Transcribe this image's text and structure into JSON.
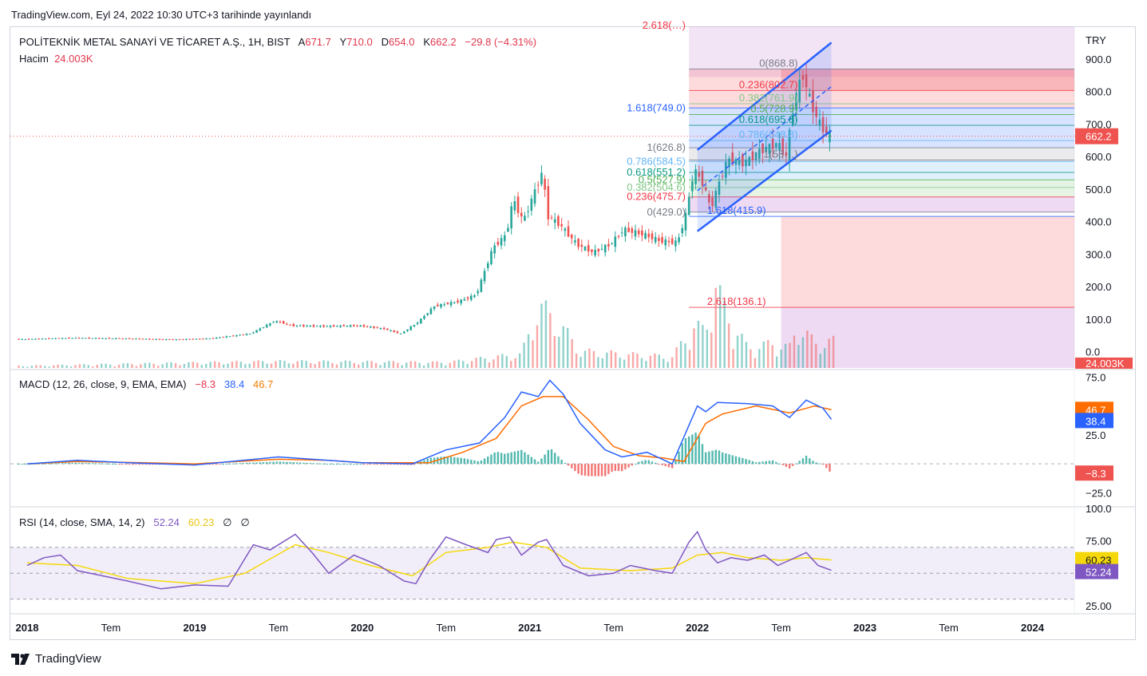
{
  "header": {
    "published": "TradingView.com, Eyl 24, 2022 10:30 UTC+3 tarihinde yayınlandı"
  },
  "legend": {
    "symbol": "POLİTEKNİK METAL SANAYİ VE TİCARET A.Ş., 1H, BIST",
    "open_label": "A",
    "open": "671.7",
    "high_label": "Y",
    "high": "710.0",
    "low_label": "D",
    "low": "654.0",
    "close_label": "K",
    "close": "662.2",
    "change": "−29.8 (−4.31%)",
    "volume_label": "Hacim",
    "volume": "24.003K"
  },
  "macd_legend": {
    "label": "MACD (12, 26, close, 9, EMA, EMA)",
    "hist": "−8.3",
    "macd": "38.4",
    "signal": "46.7"
  },
  "rsi_legend": {
    "label": "RSI (14, close, SMA, 14, 2)",
    "rsi": "52.24",
    "ma": "60.23",
    "extra1": "∅",
    "extra2": "∅"
  },
  "colors": {
    "up": "#26a69a",
    "down": "#ef5350",
    "macd": "#2962ff",
    "signal": "#ff6d00",
    "rsi": "#7e57c2",
    "rsi_ma": "#f5d80a",
    "channel": "#2962ff"
  },
  "brand": {
    "name": "TradingView"
  },
  "chart_data": [
    {
      "type": "candlestick",
      "currency": "TRY",
      "x_ticks": [
        "2018",
        "Tem",
        "2019",
        "Tem",
        "2020",
        "Tem",
        "2021",
        "Tem",
        "2022",
        "Tem",
        "2023",
        "Tem",
        "2024"
      ],
      "y_ticks": [
        "900.0",
        "800.0",
        "700.0",
        "600.0",
        "500.0",
        "400.0",
        "300.0",
        "200.0",
        "100.0",
        "0.0"
      ],
      "ylim": [
        -50,
        1000
      ],
      "last_price": "662.2",
      "volume_last": "24.003K",
      "price_path": [
        [
          2018.0,
          38
        ],
        [
          2018.3,
          42
        ],
        [
          2018.6,
          40
        ],
        [
          2018.9,
          37
        ],
        [
          2019.1,
          40
        ],
        [
          2019.35,
          55
        ],
        [
          2019.5,
          95
        ],
        [
          2019.6,
          80
        ],
        [
          2019.8,
          78
        ],
        [
          2020.0,
          80
        ],
        [
          2020.15,
          70
        ],
        [
          2020.25,
          55
        ],
        [
          2020.35,
          90
        ],
        [
          2020.45,
          140
        ],
        [
          2020.6,
          155
        ],
        [
          2020.7,
          175
        ],
        [
          2020.8,
          320
        ],
        [
          2020.88,
          360
        ],
        [
          2020.92,
          470
        ],
        [
          2020.98,
          400
        ],
        [
          2021.04,
          480
        ],
        [
          2021.1,
          560
        ],
        [
          2021.12,
          420
        ],
        [
          2021.2,
          390
        ],
        [
          2021.3,
          330
        ],
        [
          2021.4,
          305
        ],
        [
          2021.5,
          330
        ],
        [
          2021.58,
          375
        ],
        [
          2021.7,
          360
        ],
        [
          2021.8,
          340
        ],
        [
          2021.9,
          335
        ],
        [
          2021.95,
          420
        ],
        [
          2022.0,
          560
        ],
        [
          2022.05,
          520
        ],
        [
          2022.1,
          440
        ],
        [
          2022.15,
          520
        ],
        [
          2022.2,
          590
        ],
        [
          2022.3,
          580
        ],
        [
          2022.4,
          620
        ],
        [
          2022.5,
          640
        ],
        [
          2022.55,
          600
        ],
        [
          2022.6,
          780
        ],
        [
          2022.65,
          850
        ],
        [
          2022.7,
          760
        ],
        [
          2022.75,
          700
        ],
        [
          2022.8,
          662.2
        ]
      ],
      "volume_path": [
        [
          2018.0,
          2
        ],
        [
          2019.5,
          6
        ],
        [
          2020.5,
          5
        ],
        [
          2020.8,
          10
        ],
        [
          2020.95,
          12
        ],
        [
          2021.05,
          55
        ],
        [
          2021.15,
          45
        ],
        [
          2021.3,
          15
        ],
        [
          2021.6,
          12
        ],
        [
          2021.85,
          10
        ],
        [
          2021.98,
          38
        ],
        [
          2022.05,
          32
        ],
        [
          2022.1,
          85
        ],
        [
          2022.15,
          55
        ],
        [
          2022.3,
          18
        ],
        [
          2022.45,
          22
        ],
        [
          2022.55,
          18
        ],
        [
          2022.6,
          40
        ],
        [
          2022.7,
          22
        ],
        [
          2022.8,
          24
        ]
      ],
      "fib_retracement_left": [
        {
          "label": "1.618(749.0)",
          "value": 749.0,
          "color": "#2962ff"
        },
        {
          "label": "1(626.8)",
          "value": 626.8,
          "color": "#787b86"
        },
        {
          "label": "0.786(584.5)",
          "value": 584.5,
          "color": "#64b5f6"
        },
        {
          "label": "0.618(551.2)",
          "value": 551.2,
          "color": "#089981"
        },
        {
          "label": "0.5(527.9)",
          "value": 527.9,
          "color": "#4caf50"
        },
        {
          "label": "0.382(504.6)",
          "value": 504.6,
          "color": "#81c784"
        },
        {
          "label": "0.236(475.7)",
          "value": 475.7,
          "color": "#f23645"
        },
        {
          "label": "0(429.0)",
          "value": 429.0,
          "color": "#787b86"
        }
      ],
      "fib_retracement_right": [
        {
          "label": "0(868.8)",
          "value": 868.8,
          "color": "#787b86"
        },
        {
          "label": "0.236(802.7)",
          "value": 802.7,
          "color": "#f23645"
        },
        {
          "label": "0.382(761.9)",
          "value": 761.9,
          "color": "#81c784"
        },
        {
          "label": "0.5(728.9)",
          "value": 728.9,
          "color": "#4caf50"
        },
        {
          "label": "0.618(695.8)",
          "value": 695.8,
          "color": "#089981"
        },
        {
          "label": "0.786(648.8)",
          "value": 648.8,
          "color": "#64b5f6"
        },
        {
          "label": "1(58…)",
          "value": 589.0,
          "color": "#787b86"
        },
        {
          "label": "1.618(415.9)",
          "value": 415.9,
          "color": "#2962ff"
        },
        {
          "label": "2.618(136.1)",
          "value": 136.1,
          "color": "#f23645"
        }
      ],
      "top_cut_label": "2.618(…)"
    },
    {
      "type": "line",
      "name": "MACD (12, 26, close, 9, EMA, EMA)",
      "y_ticks": [
        "75.0",
        "25.0",
        "−25.0"
      ],
      "ylim": [
        -35,
        80
      ],
      "values_last": {
        "hist": "−8.3",
        "macd": "38.4",
        "signal": "46.7"
      },
      "macd_path": [
        [
          2018.0,
          0
        ],
        [
          2018.3,
          3
        ],
        [
          2018.6,
          1
        ],
        [
          2019.0,
          -1
        ],
        [
          2019.5,
          6
        ],
        [
          2019.7,
          4
        ],
        [
          2020.0,
          1
        ],
        [
          2020.3,
          0
        ],
        [
          2020.5,
          12
        ],
        [
          2020.7,
          18
        ],
        [
          2020.85,
          40
        ],
        [
          2020.95,
          62
        ],
        [
          2021.05,
          58
        ],
        [
          2021.12,
          72
        ],
        [
          2021.2,
          60
        ],
        [
          2021.3,
          35
        ],
        [
          2021.45,
          12
        ],
        [
          2021.55,
          6
        ],
        [
          2021.7,
          10
        ],
        [
          2021.85,
          0
        ],
        [
          2022.0,
          50
        ],
        [
          2022.05,
          45
        ],
        [
          2022.12,
          53
        ],
        [
          2022.3,
          52
        ],
        [
          2022.45,
          50
        ],
        [
          2022.55,
          40
        ],
        [
          2022.65,
          55
        ],
        [
          2022.75,
          48
        ],
        [
          2022.8,
          38.4
        ]
      ],
      "signal_path": [
        [
          2018.0,
          0
        ],
        [
          2018.3,
          2
        ],
        [
          2018.7,
          1
        ],
        [
          2019.0,
          0
        ],
        [
          2019.5,
          4
        ],
        [
          2019.8,
          3
        ],
        [
          2020.0,
          1
        ],
        [
          2020.4,
          1
        ],
        [
          2020.6,
          10
        ],
        [
          2020.8,
          22
        ],
        [
          2020.95,
          50
        ],
        [
          2021.08,
          58
        ],
        [
          2021.2,
          58
        ],
        [
          2021.35,
          38
        ],
        [
          2021.5,
          15
        ],
        [
          2021.65,
          7
        ],
        [
          2021.8,
          5
        ],
        [
          2021.92,
          2
        ],
        [
          2022.05,
          35
        ],
        [
          2022.15,
          43
        ],
        [
          2022.35,
          50
        ],
        [
          2022.55,
          44
        ],
        [
          2022.7,
          50
        ],
        [
          2022.8,
          46.7
        ]
      ]
    },
    {
      "type": "line",
      "name": "RSI (14, close, SMA, 14, 2)",
      "y_ticks": [
        "100.0",
        "75.00",
        "25.00"
      ],
      "ylim": [
        20,
        100
      ],
      "bands": [
        30,
        70
      ],
      "values_last": {
        "rsi": "52.24",
        "ma": "60.23"
      },
      "rsi_path": [
        [
          2018.0,
          56
        ],
        [
          2018.1,
          62
        ],
        [
          2018.2,
          64
        ],
        [
          2018.3,
          52
        ],
        [
          2018.45,
          48
        ],
        [
          2018.6,
          44
        ],
        [
          2018.8,
          38
        ],
        [
          2019.0,
          41
        ],
        [
          2019.2,
          40
        ],
        [
          2019.35,
          72
        ],
        [
          2019.45,
          68
        ],
        [
          2019.6,
          80
        ],
        [
          2019.7,
          66
        ],
        [
          2019.8,
          50
        ],
        [
          2019.95,
          64
        ],
        [
          2020.1,
          56
        ],
        [
          2020.25,
          44
        ],
        [
          2020.32,
          42
        ],
        [
          2020.4,
          60
        ],
        [
          2020.5,
          78
        ],
        [
          2020.62,
          72
        ],
        [
          2020.75,
          66
        ],
        [
          2020.8,
          76
        ],
        [
          2020.88,
          78
        ],
        [
          2020.95,
          64
        ],
        [
          2021.05,
          74
        ],
        [
          2021.1,
          76
        ],
        [
          2021.2,
          56
        ],
        [
          2021.35,
          48
        ],
        [
          2021.5,
          50
        ],
        [
          2021.6,
          56
        ],
        [
          2021.75,
          52
        ],
        [
          2021.85,
          50
        ],
        [
          2021.95,
          74
        ],
        [
          2022.0,
          82
        ],
        [
          2022.05,
          68
        ],
        [
          2022.12,
          58
        ],
        [
          2022.2,
          62
        ],
        [
          2022.3,
          60
        ],
        [
          2022.4,
          64
        ],
        [
          2022.48,
          56
        ],
        [
          2022.55,
          60
        ],
        [
          2022.65,
          66
        ],
        [
          2022.72,
          56
        ],
        [
          2022.8,
          52.24
        ]
      ],
      "rsi_ma_path": [
        [
          2018.0,
          58
        ],
        [
          2018.3,
          56
        ],
        [
          2018.6,
          46
        ],
        [
          2019.0,
          42
        ],
        [
          2019.3,
          50
        ],
        [
          2019.6,
          72
        ],
        [
          2019.8,
          66
        ],
        [
          2020.05,
          56
        ],
        [
          2020.3,
          48
        ],
        [
          2020.5,
          66
        ],
        [
          2020.75,
          70
        ],
        [
          2020.9,
          74
        ],
        [
          2021.1,
          70
        ],
        [
          2021.3,
          54
        ],
        [
          2021.6,
          52
        ],
        [
          2021.85,
          54
        ],
        [
          2022.0,
          64
        ],
        [
          2022.15,
          66
        ],
        [
          2022.3,
          62
        ],
        [
          2022.5,
          60
        ],
        [
          2022.65,
          62
        ],
        [
          2022.8,
          60.23
        ]
      ]
    }
  ]
}
